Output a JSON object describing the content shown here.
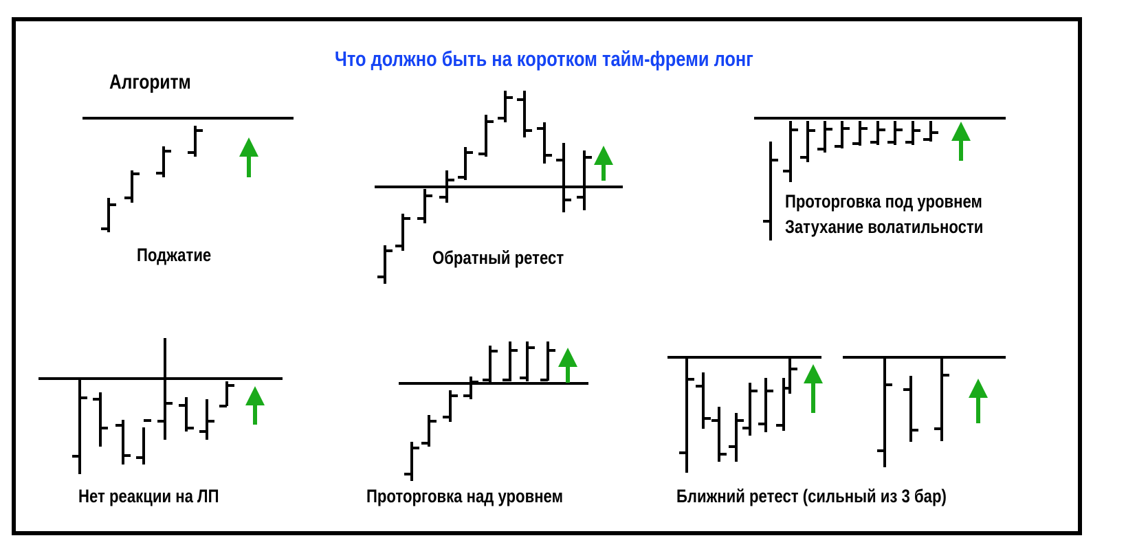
{
  "title": "Что должно быть на коротком тайм-фреми лонг",
  "header_label": "Алгоритм",
  "colors": {
    "title": "#1544f5",
    "arrow": "#1aaa1a",
    "ink": "#000000"
  },
  "patterns": [
    {
      "id": "squeeze",
      "label": "Поджатие"
    },
    {
      "id": "reverse-retest",
      "label": "Обратный ретест"
    },
    {
      "id": "consolidation-below",
      "label_lines": [
        "Проторговка под уровнем",
        "Затухание волатильности"
      ]
    },
    {
      "id": "no-reaction",
      "label": "Нет реакции на ЛП"
    },
    {
      "id": "consolidation-above",
      "label": "Проторговка над уровнем"
    },
    {
      "id": "near-retest",
      "label": "Ближний ретест (сильный из 3 бар)"
    }
  ]
}
